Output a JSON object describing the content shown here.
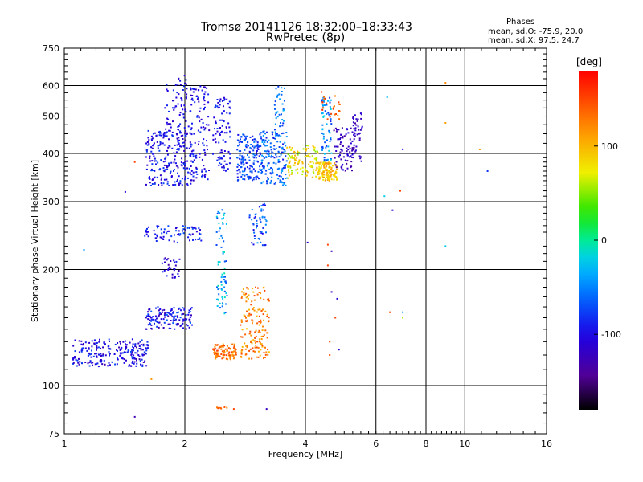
{
  "header": {
    "title": "Tromsø 20141126 18:32:00–18:33:43",
    "subtitle": "RwPretec (8p)",
    "stats_heading": "Phases",
    "stats_o": "mean, sd,O: -75.9, 20.0",
    "stats_x": "mean, sd,X: 97.5, 24.7"
  },
  "colorbar": {
    "unit_label": "[deg]",
    "tick_labels": [
      "100",
      "0",
      "-100"
    ],
    "tick_values": [
      100,
      0,
      -100
    ],
    "range": [
      -180,
      180
    ]
  },
  "chart_data": {
    "type": "scatter",
    "title": "",
    "xlabel": "Frequency [MHz]",
    "ylabel": "Stationary phase Virtual Height [km]",
    "xscale": "log",
    "yscale": "log",
    "xlim": [
      1,
      16
    ],
    "ylim": [
      75,
      750
    ],
    "grid": true,
    "x_ticks": [
      1,
      2,
      4,
      6,
      8,
      10,
      16
    ],
    "x_tick_labels": [
      "1",
      "2",
      "4",
      "6",
      "8",
      "10",
      "16"
    ],
    "y_ticks": [
      75,
      100,
      200,
      300,
      400,
      500,
      600,
      750
    ],
    "y_tick_labels": [
      "75",
      "100",
      "200",
      "300",
      "400",
      "500",
      "600",
      "750"
    ],
    "color_by": "phase",
    "clusters": [
      {
        "x": [
          1.05,
          1.62
        ],
        "y": [
          112,
          132
        ],
        "phase": -100,
        "spread": 30,
        "n": 230
      },
      {
        "x": [
          1.6,
          2.1
        ],
        "y": [
          140,
          160
        ],
        "phase": -95,
        "spread": 35,
        "n": 140
      },
      {
        "x": [
          1.6,
          2.1
        ],
        "y": [
          330,
          460
        ],
        "phase": -95,
        "spread": 25,
        "n": 230
      },
      {
        "x": [
          1.78,
          2.05
        ],
        "y": [
          430,
          640
        ],
        "phase": -100,
        "spread": 20,
        "n": 80
      },
      {
        "x": [
          2.06,
          2.3
        ],
        "y": [
          340,
          600
        ],
        "phase": -100,
        "spread": 22,
        "n": 110
      },
      {
        "x": [
          1.55,
          2.2
        ],
        "y": [
          235,
          260
        ],
        "phase": -90,
        "spread": 25,
        "n": 80
      },
      {
        "x": [
          1.75,
          1.95
        ],
        "y": [
          190,
          215
        ],
        "phase": -110,
        "spread": 25,
        "n": 30
      },
      {
        "x": [
          2.35,
          2.6
        ],
        "y": [
          360,
          560
        ],
        "phase": -95,
        "spread": 22,
        "n": 90
      },
      {
        "x": [
          2.4,
          2.55
        ],
        "y": [
          150,
          290
        ],
        "phase": -40,
        "spread": 35,
        "n": 70
      },
      {
        "x": [
          2.35,
          2.7
        ],
        "y": [
          117,
          128
        ],
        "phase": 130,
        "spread": 25,
        "n": 90
      },
      {
        "x": [
          2.75,
          3.25
        ],
        "y": [
          117,
          180
        ],
        "phase": 125,
        "spread": 30,
        "n": 160
      },
      {
        "x": [
          2.9,
          3.2
        ],
        "y": [
          230,
          300
        ],
        "phase": -70,
        "spread": 30,
        "n": 50
      },
      {
        "x": [
          2.7,
          3.1
        ],
        "y": [
          340,
          450
        ],
        "phase": -75,
        "spread": 25,
        "n": 150
      },
      {
        "x": [
          3.1,
          3.6
        ],
        "y": [
          330,
          460
        ],
        "phase": -65,
        "spread": 30,
        "n": 160
      },
      {
        "x": [
          3.35,
          3.55
        ],
        "y": [
          440,
          610
        ],
        "phase": -55,
        "spread": 25,
        "n": 40
      },
      {
        "x": [
          3.6,
          4.3
        ],
        "y": [
          345,
          420
        ],
        "phase": 80,
        "spread": 30,
        "n": 110
      },
      {
        "x": [
          4.3,
          4.8
        ],
        "y": [
          340,
          380
        ],
        "phase": 95,
        "spread": 25,
        "n": 120
      },
      {
        "x": [
          4.4,
          4.65
        ],
        "y": [
          380,
          560
        ],
        "phase": -50,
        "spread": 35,
        "n": 70
      },
      {
        "x": [
          4.3,
          4.9
        ],
        "y": [
          490,
          600
        ],
        "phase": 145,
        "spread": 25,
        "n": 25
      },
      {
        "x": [
          4.7,
          5.3
        ],
        "y": [
          360,
          470
        ],
        "phase": -120,
        "spread": 20,
        "n": 80
      },
      {
        "x": [
          5.25,
          5.55
        ],
        "y": [
          380,
          510
        ],
        "phase": -120,
        "spread": 15,
        "n": 40
      },
      {
        "x": [
          2.35,
          2.55
        ],
        "y": [
          87,
          88
        ],
        "phase": 135,
        "spread": 10,
        "n": 8
      }
    ],
    "isolated_points": [
      {
        "x": 1.12,
        "y": 225,
        "phase": -40
      },
      {
        "x": 1.42,
        "y": 318,
        "phase": -110
      },
      {
        "x": 1.5,
        "y": 380,
        "phase": 150
      },
      {
        "x": 1.5,
        "y": 83,
        "phase": -130
      },
      {
        "x": 1.65,
        "y": 104,
        "phase": 115
      },
      {
        "x": 2.65,
        "y": 87,
        "phase": 150
      },
      {
        "x": 3.2,
        "y": 87,
        "phase": -120
      },
      {
        "x": 4.05,
        "y": 235,
        "phase": -110
      },
      {
        "x": 4.55,
        "y": 232,
        "phase": 150
      },
      {
        "x": 4.65,
        "y": 223,
        "phase": -120
      },
      {
        "x": 4.55,
        "y": 205,
        "phase": 150
      },
      {
        "x": 4.65,
        "y": 175,
        "phase": -120
      },
      {
        "x": 4.8,
        "y": 168,
        "phase": -110
      },
      {
        "x": 4.75,
        "y": 150,
        "phase": 150
      },
      {
        "x": 4.6,
        "y": 130,
        "phase": 150
      },
      {
        "x": 4.85,
        "y": 124,
        "phase": -110
      },
      {
        "x": 4.6,
        "y": 120,
        "phase": 150
      },
      {
        "x": 6.3,
        "y": 310,
        "phase": -20
      },
      {
        "x": 6.6,
        "y": 285,
        "phase": -110
      },
      {
        "x": 6.9,
        "y": 320,
        "phase": 150
      },
      {
        "x": 6.5,
        "y": 155,
        "phase": 150
      },
      {
        "x": 7.0,
        "y": 150,
        "phase": 60
      },
      {
        "x": 7.0,
        "y": 155,
        "phase": -40
      },
      {
        "x": 7.0,
        "y": 410,
        "phase": -100
      },
      {
        "x": 6.4,
        "y": 560,
        "phase": -30
      },
      {
        "x": 8.95,
        "y": 480,
        "phase": 110
      },
      {
        "x": 8.95,
        "y": 610,
        "phase": 120
      },
      {
        "x": 8.95,
        "y": 230,
        "phase": -20
      },
      {
        "x": 10.9,
        "y": 410,
        "phase": 115
      },
      {
        "x": 11.4,
        "y": 360,
        "phase": -80
      }
    ]
  }
}
